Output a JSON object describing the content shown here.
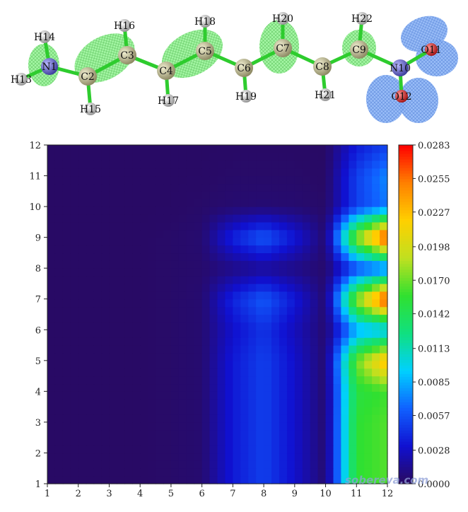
{
  "molecule": {
    "atoms": [
      {
        "label": "N1",
        "element": "N"
      },
      {
        "label": "C2",
        "element": "C"
      },
      {
        "label": "C3",
        "element": "C"
      },
      {
        "label": "C4",
        "element": "C"
      },
      {
        "label": "C5",
        "element": "C"
      },
      {
        "label": "C6",
        "element": "C"
      },
      {
        "label": "C7",
        "element": "C"
      },
      {
        "label": "C8",
        "element": "C"
      },
      {
        "label": "C9",
        "element": "C"
      },
      {
        "label": "N10",
        "element": "N"
      },
      {
        "label": "O11",
        "element": "O"
      },
      {
        "label": "O12",
        "element": "O"
      },
      {
        "label": "H13",
        "element": "H"
      },
      {
        "label": "H14",
        "element": "H"
      },
      {
        "label": "H15",
        "element": "H"
      },
      {
        "label": "H16",
        "element": "H"
      },
      {
        "label": "H17",
        "element": "H"
      },
      {
        "label": "H18",
        "element": "H"
      },
      {
        "label": "H19",
        "element": "H"
      },
      {
        "label": "H20",
        "element": "H"
      },
      {
        "label": "H21",
        "element": "H"
      },
      {
        "label": "H22",
        "element": "H"
      }
    ],
    "colors": {
      "C": "#b8b48a",
      "N": "#6a6ad0",
      "O": "#d02020",
      "H": "#d8d8d8",
      "bond": "#2ecc2e",
      "lobe_green": "#8ef08e",
      "lobe_blue": "#7aa8f0"
    }
  },
  "chart_data": {
    "type": "heatmap",
    "x_ticks": [
      "1",
      "2",
      "3",
      "4",
      "5",
      "6",
      "7",
      "8",
      "9",
      "10",
      "11",
      "12"
    ],
    "y_ticks": [
      "1",
      "2",
      "3",
      "4",
      "5",
      "6",
      "7",
      "8",
      "9",
      "10",
      "11",
      "12"
    ],
    "xlim": [
      1,
      12
    ],
    "ylim": [
      1,
      12
    ],
    "colorbar": {
      "min": 0.0,
      "max": 0.0283,
      "ticks": [
        "0.0283",
        "0.0255",
        "0.0227",
        "0.0198",
        "0.0170",
        "0.0142",
        "0.0113",
        "0.0085",
        "0.0057",
        "0.0028",
        "0.0000"
      ],
      "colormap": [
        "#2a0a5e",
        "#1010d0",
        "#1060ff",
        "#00d0ff",
        "#10e080",
        "#30e030",
        "#c0e020",
        "#ffd000",
        "#ff8000",
        "#ff0000"
      ]
    },
    "grid_values": [
      [
        0.0002,
        0.0002,
        0.0002,
        0.0002,
        0.0003,
        0.0005,
        0.0035,
        0.005,
        0.003,
        0.0005,
        0.0155,
        0.0165
      ],
      [
        0.0002,
        0.0002,
        0.0002,
        0.0002,
        0.0003,
        0.0005,
        0.0035,
        0.005,
        0.003,
        0.0005,
        0.0155,
        0.0165
      ],
      [
        0.0002,
        0.0002,
        0.0002,
        0.0002,
        0.0003,
        0.0005,
        0.0035,
        0.005,
        0.003,
        0.0005,
        0.0155,
        0.0165
      ],
      [
        0.0002,
        0.0002,
        0.0002,
        0.0002,
        0.0003,
        0.0005,
        0.0035,
        0.005,
        0.003,
        0.0005,
        0.015,
        0.016
      ],
      [
        0.0002,
        0.0002,
        0.0002,
        0.0002,
        0.0003,
        0.0005,
        0.0035,
        0.005,
        0.003,
        0.0005,
        0.017,
        0.0235
      ],
      [
        0.0002,
        0.0002,
        0.0002,
        0.0002,
        0.0003,
        0.0005,
        0.003,
        0.0045,
        0.0025,
        0.0005,
        0.008,
        0.009
      ],
      [
        0.0002,
        0.0002,
        0.0002,
        0.0002,
        0.0003,
        0.0005,
        0.004,
        0.006,
        0.0035,
        0.0005,
        0.018,
        0.0283
      ],
      [
        0.0002,
        0.0002,
        0.0002,
        0.0002,
        0.0003,
        0.0004,
        0.001,
        0.0015,
        0.001,
        0.0004,
        0.005,
        0.006
      ],
      [
        0.0002,
        0.0002,
        0.0002,
        0.0002,
        0.0003,
        0.0005,
        0.004,
        0.006,
        0.0035,
        0.0005,
        0.018,
        0.0283
      ],
      [
        0.0002,
        0.0002,
        0.0002,
        0.0002,
        0.0002,
        0.0003,
        0.0005,
        0.0006,
        0.0005,
        0.0003,
        0.005,
        0.007
      ],
      [
        0.0002,
        0.0002,
        0.0002,
        0.0002,
        0.0002,
        0.0002,
        0.0003,
        0.0003,
        0.0003,
        0.0002,
        0.005,
        0.0075
      ],
      [
        0.0002,
        0.0002,
        0.0002,
        0.0002,
        0.0002,
        0.0002,
        0.0002,
        0.0002,
        0.0002,
        0.0002,
        0.0035,
        0.005
      ]
    ]
  },
  "watermark": "sobereva.com"
}
